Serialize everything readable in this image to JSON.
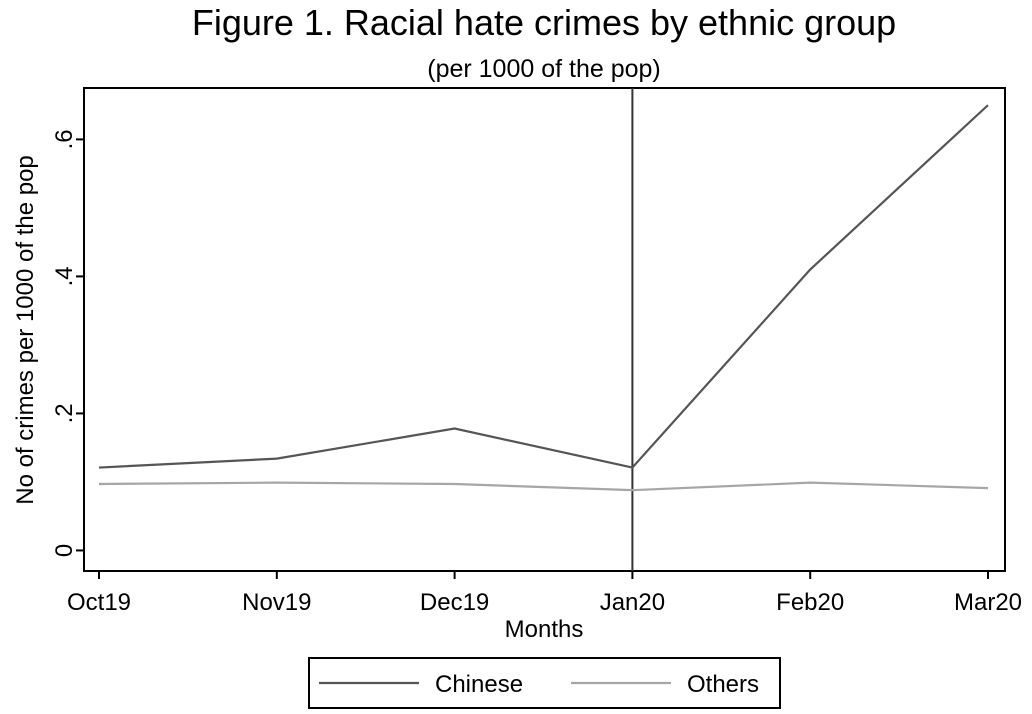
{
  "chart_data": {
    "type": "line",
    "title": "Figure 1. Racial hate crimes by ethnic group",
    "subtitle": "(per 1000 of the pop)",
    "xlabel": "Months",
    "ylabel": "No of crimes per 1000 of the pop",
    "categories": [
      "Oct19",
      "Nov19",
      "Dec19",
      "Jan20",
      "Feb20",
      "Mar20"
    ],
    "yticks": [
      0,
      0.2,
      0.4,
      0.6
    ],
    "ytick_labels": [
      "0",
      ".2",
      ".4",
      ".6"
    ],
    "ylim": [
      -0.03,
      0.675
    ],
    "grid": false,
    "reference_line": {
      "x": "Jan20"
    },
    "legend_position": "bottom-center",
    "series": [
      {
        "name": "Chinese",
        "color": "#555555",
        "values": [
          0.121,
          0.134,
          0.178,
          0.121,
          0.41,
          0.65
        ]
      },
      {
        "name": "Others",
        "color": "#a6a6a6",
        "values": [
          0.097,
          0.099,
          0.097,
          0.088,
          0.099,
          0.091
        ]
      }
    ]
  }
}
